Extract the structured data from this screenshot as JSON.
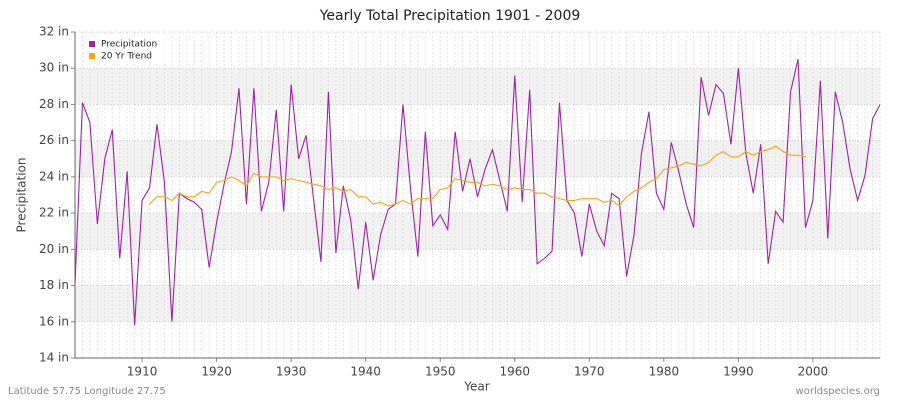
{
  "chart_data": {
    "type": "line",
    "title": "Yearly Total Precipitation 1901 - 2009",
    "x_label": "Year",
    "y_label": "Precipitation",
    "footer_left": "Latitude 57.75 Longitude 27.75",
    "footer_right": "worldspecies.org",
    "x": [
      1901,
      1902,
      1903,
      1904,
      1905,
      1906,
      1907,
      1908,
      1909,
      1910,
      1911,
      1912,
      1913,
      1914,
      1915,
      1916,
      1917,
      1918,
      1919,
      1920,
      1921,
      1922,
      1923,
      1924,
      1925,
      1926,
      1927,
      1928,
      1929,
      1930,
      1931,
      1932,
      1933,
      1934,
      1935,
      1936,
      1937,
      1938,
      1939,
      1940,
      1941,
      1942,
      1943,
      1944,
      1945,
      1946,
      1947,
      1948,
      1949,
      1950,
      1951,
      1952,
      1953,
      1954,
      1955,
      1956,
      1957,
      1958,
      1959,
      1960,
      1961,
      1962,
      1963,
      1964,
      1965,
      1966,
      1967,
      1968,
      1969,
      1970,
      1971,
      1972,
      1973,
      1974,
      1975,
      1976,
      1977,
      1978,
      1979,
      1980,
      1981,
      1982,
      1983,
      1984,
      1985,
      1986,
      1987,
      1988,
      1989,
      1990,
      1991,
      1992,
      1993,
      1994,
      1995,
      1996,
      1997,
      1998,
      1999,
      2000,
      2001,
      2002,
      2003,
      2004,
      2005,
      2006,
      2007,
      2008,
      2009
    ],
    "series": [
      {
        "name": "Precipitation",
        "color": "#a021a8",
        "values": [
          18.1,
          28.1,
          27.0,
          21.4,
          25.0,
          26.6,
          19.5,
          24.3,
          15.8,
          22.7,
          23.4,
          26.9,
          23.7,
          16.0,
          23.1,
          22.8,
          22.6,
          22.2,
          19.0,
          21.5,
          23.6,
          25.4,
          28.9,
          22.5,
          28.9,
          22.1,
          23.7,
          27.7,
          22.1,
          29.1,
          25.0,
          26.3,
          22.8,
          19.3,
          28.7,
          19.8,
          23.5,
          21.6,
          17.8,
          21.5,
          18.3,
          20.8,
          22.2,
          22.5,
          28.0,
          23.4,
          19.6,
          26.5,
          21.3,
          21.9,
          21.1,
          26.5,
          23.2,
          25.0,
          22.9,
          24.4,
          25.5,
          23.8,
          22.1,
          29.6,
          22.6,
          28.8,
          19.2,
          19.5,
          19.9,
          28.1,
          22.7,
          22.0,
          19.6,
          22.5,
          21.0,
          20.2,
          23.1,
          22.8,
          18.5,
          20.8,
          25.3,
          27.6,
          23.1,
          22.2,
          25.9,
          24.3,
          22.5,
          21.2,
          29.5,
          27.4,
          29.1,
          28.6,
          25.8,
          30.0,
          25.3,
          23.1,
          25.8,
          19.2,
          22.1,
          21.5,
          28.7,
          30.5,
          21.2,
          22.7,
          29.3,
          20.6,
          28.7,
          27.0,
          24.4,
          22.7,
          24.1,
          27.2,
          28.0
        ]
      },
      {
        "name": "20 Yr Trend",
        "color": "#ffa500",
        "values": [
          null,
          null,
          null,
          null,
          null,
          null,
          null,
          null,
          null,
          null,
          22.5,
          22.9,
          22.9,
          22.7,
          23.1,
          22.9,
          22.9,
          23.2,
          23.1,
          23.7,
          23.8,
          24.0,
          23.8,
          23.5,
          24.2,
          24.0,
          24.0,
          24.0,
          23.8,
          23.9,
          23.8,
          23.7,
          23.6,
          23.5,
          23.3,
          23.4,
          23.2,
          23.3,
          22.9,
          22.9,
          22.5,
          22.6,
          22.4,
          22.5,
          22.7,
          22.5,
          22.8,
          22.8,
          22.8,
          23.3,
          23.4,
          23.9,
          23.8,
          23.7,
          23.7,
          23.5,
          23.6,
          23.5,
          23.3,
          23.4,
          23.3,
          23.3,
          23.1,
          23.1,
          22.9,
          22.8,
          22.7,
          22.7,
          22.8,
          22.8,
          22.8,
          22.6,
          22.7,
          22.4,
          22.9,
          23.2,
          23.4,
          23.7,
          23.9,
          24.4,
          24.5,
          24.6,
          24.8,
          24.7,
          24.6,
          24.8,
          25.2,
          25.4,
          25.1,
          25.1,
          25.4,
          25.2,
          25.4,
          25.5,
          25.7,
          25.4,
          25.2,
          25.2,
          25.1,
          null,
          null,
          null,
          null,
          null,
          null,
          null,
          null,
          null,
          null
        ]
      }
    ],
    "xlim": [
      1901,
      2009
    ],
    "xticks": [
      1910,
      1920,
      1930,
      1940,
      1950,
      1960,
      1970,
      1980,
      1990,
      2000
    ],
    "ylim": [
      14,
      32
    ],
    "yticks": [
      {
        "value": 14,
        "label": "14 in"
      },
      {
        "value": 16,
        "label": "16 in"
      },
      {
        "value": 18,
        "label": "18 in"
      },
      {
        "value": 20,
        "label": "20 in"
      },
      {
        "value": 22,
        "label": "22 in"
      },
      {
        "value": 24,
        "label": "24 in"
      },
      {
        "value": 26,
        "label": "26 in"
      },
      {
        "value": 28,
        "label": "28 in"
      },
      {
        "value": 30,
        "label": "30 in"
      },
      {
        "value": 32,
        "label": "32 in"
      }
    ],
    "grid": true,
    "legend": "top-left"
  }
}
